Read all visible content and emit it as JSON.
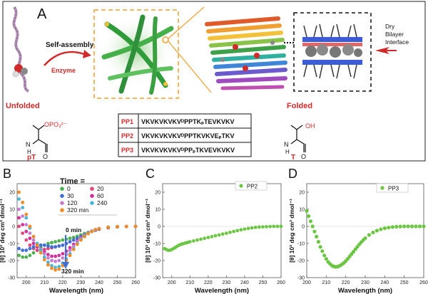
{
  "panel_a": {
    "letter": "A",
    "self_assembly": "Self-assembly",
    "enzyme": "Enzyme",
    "unfolded": "Unfolded",
    "folded": "Folded",
    "interface_line1": "Dry",
    "interface_line2": "Bilayer",
    "interface_line3": "Interface",
    "pT_label": "pT",
    "pT_group": "OPO₃²⁻",
    "T_label": "T",
    "T_group": "OH",
    "nh": "N",
    "h": "H",
    "o": "O",
    "peptides": [
      {
        "name": "PP1",
        "seq": "VKVKVKVKVᴰPPTKₚTEVKVKV"
      },
      {
        "name": "PP2",
        "seq": "VKVKVKVKVᴰPPTKVKVEₚTKV"
      },
      {
        "name": "PP3",
        "seq": "VKVKVKVKVᴰPPₚTKVEVKVKV"
      }
    ]
  },
  "panel_b": {
    "letter": "B",
    "legend_title": "Time =",
    "legend": [
      {
        "label": "0",
        "color": "#4caf50"
      },
      {
        "label": "20",
        "color": "#e0457b"
      },
      {
        "label": "30",
        "color": "#3f6fd8"
      },
      {
        "label": "60",
        "color": "#d0309a"
      },
      {
        "label": "120",
        "color": "#c77dcf"
      },
      {
        "label": "240",
        "color": "#49b6d8"
      },
      {
        "label": "320 min",
        "color": "#f08a24"
      }
    ],
    "ann_start": "0 min",
    "ann_end": "320 min"
  },
  "panel_c": {
    "letter": "C",
    "legend": "PP2"
  },
  "panel_d": {
    "letter": "D",
    "legend": "PP3"
  },
  "chart_data": [
    {
      "type": "scatter",
      "title": "B",
      "xlabel": "Wavelength (nm)",
      "ylabel": "[θ] 10³ deg cm² dmol⁻¹",
      "xlim": [
        195,
        260
      ],
      "ylim": [
        -30,
        25
      ],
      "xticks": [
        200,
        210,
        220,
        230,
        240,
        250,
        260
      ],
      "yticks": [
        -30,
        -20,
        -10,
        0,
        10,
        20
      ],
      "series": [
        {
          "name": "0",
          "color": "#4caf50",
          "x": [
            196,
            198,
            200,
            202,
            204,
            206,
            208,
            210,
            212,
            214,
            216,
            218,
            220,
            222,
            224,
            226,
            228,
            230,
            232,
            234,
            236,
            238,
            240,
            245,
            250,
            255,
            260
          ],
          "y": [
            -17,
            -18,
            -18,
            -17,
            -15.5,
            -14,
            -12.5,
            -11,
            -10,
            -9.5,
            -9,
            -8.5,
            -8,
            -7.5,
            -7,
            -6.5,
            -5.8,
            -5,
            -4.2,
            -3.5,
            -2.8,
            -2.2,
            -1.6,
            -0.8,
            -0.3,
            -0.1,
            0
          ]
        },
        {
          "name": "20",
          "color": "#e0457b",
          "x": [
            196,
            198,
            200,
            202,
            204,
            206,
            208,
            210,
            212,
            214,
            216,
            218,
            220,
            222,
            224,
            226,
            228,
            230,
            232,
            234,
            236,
            238,
            240,
            245,
            250,
            255,
            260
          ],
          "y": [
            0,
            -4,
            -8,
            -11,
            -13,
            -14,
            -14,
            -13.5,
            -13,
            -12.5,
            -12,
            -11.5,
            -11,
            -10,
            -9,
            -8,
            -7,
            -6,
            -5,
            -4,
            -3,
            -2.3,
            -1.7,
            -0.8,
            -0.3,
            -0.1,
            0
          ]
        },
        {
          "name": "30",
          "color": "#3f6fd8",
          "x": [
            196,
            198,
            200,
            202,
            204,
            206,
            208,
            210,
            212,
            214,
            216,
            218,
            220,
            222,
            224,
            226,
            228,
            230,
            232,
            234,
            236,
            238,
            240,
            245,
            250,
            255,
            260
          ],
          "y": [
            -13,
            -14,
            -14,
            -13,
            -12,
            -11,
            -11,
            -11,
            -11.5,
            -12,
            -12,
            -11.5,
            -11,
            -10,
            -9,
            -8,
            -7,
            -6,
            -5,
            -4,
            -3,
            -2.3,
            -1.7,
            -0.8,
            -0.3,
            -0.1,
            0
          ]
        },
        {
          "name": "60",
          "color": "#d0309a",
          "x": [
            196,
            198,
            200,
            202,
            204,
            206,
            208,
            210,
            212,
            214,
            216,
            218,
            220,
            222,
            224,
            226,
            228,
            230,
            232,
            234,
            236,
            238,
            240,
            245,
            250,
            255,
            260
          ],
          "y": [
            5,
            1,
            -3,
            -7,
            -10,
            -12,
            -13.5,
            -15,
            -16.5,
            -17.5,
            -17.5,
            -17,
            -16,
            -14.5,
            -12.5,
            -10.5,
            -8.5,
            -6.5,
            -5,
            -3.8,
            -2.8,
            -2,
            -1.4,
            -0.6,
            -0.2,
            -0.1,
            0
          ]
        },
        {
          "name": "120",
          "color": "#c77dcf",
          "x": [
            196,
            198,
            200,
            202,
            204,
            206,
            208,
            210,
            212,
            214,
            216,
            218,
            220,
            222,
            224,
            226,
            228,
            230,
            232,
            234,
            236,
            238,
            240,
            245,
            250,
            255,
            260
          ],
          "y": [
            10,
            6,
            1,
            -4,
            -8,
            -11,
            -13.5,
            -16,
            -18.5,
            -20,
            -20.5,
            -20,
            -18.5,
            -16.5,
            -14,
            -11.5,
            -9,
            -7,
            -5.2,
            -3.8,
            -2.7,
            -1.9,
            -1.3,
            -0.5,
            -0.2,
            -0.1,
            0
          ]
        },
        {
          "name": "240",
          "color": "#49b6d8",
          "x": [
            196,
            198,
            200,
            202,
            204,
            206,
            208,
            210,
            212,
            214,
            216,
            218,
            220,
            222,
            224,
            226,
            228,
            230,
            232,
            234,
            236,
            238,
            240,
            245,
            250,
            255,
            260
          ],
          "y": [
            16,
            11,
            5,
            -1,
            -6,
            -10,
            -14,
            -18,
            -21,
            -23,
            -24,
            -23.5,
            -21.5,
            -19,
            -16,
            -13,
            -10,
            -7.5,
            -5.5,
            -4,
            -2.8,
            -1.9,
            -1.3,
            -0.5,
            -0.2,
            -0.1,
            0
          ]
        },
        {
          "name": "320 min",
          "color": "#f08a24",
          "x": [
            196,
            198,
            200,
            202,
            204,
            206,
            208,
            210,
            212,
            214,
            216,
            218,
            220,
            222,
            224,
            226,
            228,
            230,
            232,
            234,
            236,
            238,
            240,
            245,
            250,
            255,
            260
          ],
          "y": [
            20,
            14,
            7,
            0,
            -6,
            -11,
            -15.5,
            -19.5,
            -22.5,
            -24.5,
            -25.5,
            -25,
            -23,
            -20,
            -17,
            -13.5,
            -10.5,
            -8,
            -6,
            -4.3,
            -3,
            -2,
            -1.4,
            -0.6,
            -0.2,
            -0.1,
            0
          ]
        }
      ]
    },
    {
      "type": "scatter",
      "title": "C",
      "xlabel": "Wavelength (nm)",
      "ylabel": "[θ] 10³ deg cm² dmol⁻¹",
      "xlim": [
        195,
        260
      ],
      "ylim": [
        -30,
        25
      ],
      "xticks": [
        200,
        210,
        220,
        230,
        240,
        250,
        260
      ],
      "yticks": [
        -30,
        -20,
        -10,
        0,
        10,
        20
      ],
      "series": [
        {
          "name": "PP2",
          "color": "#6cc644",
          "x": [
            196,
            197,
            198,
            199,
            200,
            201,
            202,
            203,
            204,
            205,
            206,
            207,
            208,
            209,
            210,
            212,
            214,
            216,
            218,
            220,
            222,
            224,
            226,
            228,
            230,
            232,
            234,
            236,
            238,
            240,
            242,
            244,
            246,
            248,
            250,
            252,
            254,
            256,
            258,
            260
          ],
          "y": [
            -13,
            -13.5,
            -14,
            -14,
            -13.5,
            -13,
            -12.3,
            -11.6,
            -11,
            -10.6,
            -10.2,
            -9.9,
            -9.6,
            -9.3,
            -9,
            -8.5,
            -8,
            -7.5,
            -7,
            -6.5,
            -6,
            -5.5,
            -5,
            -4.5,
            -4,
            -3.5,
            -3,
            -2.5,
            -2,
            -1.6,
            -1.2,
            -0.9,
            -0.6,
            -0.4,
            -0.3,
            -0.2,
            -0.1,
            0,
            0,
            0
          ]
        }
      ]
    },
    {
      "type": "scatter",
      "title": "D",
      "xlabel": "Wavelength (nm)",
      "ylabel": "[θ] 10³ deg cm² dmol⁻¹",
      "xlim": [
        200,
        260
      ],
      "ylim": [
        -30,
        25
      ],
      "xticks": [
        200,
        210,
        220,
        230,
        240,
        250,
        260
      ],
      "yticks": [
        -30,
        -20,
        -10,
        0,
        10,
        20
      ],
      "series": [
        {
          "name": "PP3",
          "color": "#6cc644",
          "x": [
            200,
            201,
            202,
            203,
            204,
            205,
            206,
            207,
            208,
            209,
            210,
            211,
            212,
            213,
            214,
            215,
            216,
            217,
            218,
            219,
            220,
            221,
            222,
            223,
            224,
            225,
            226,
            227,
            228,
            229,
            230,
            232,
            234,
            236,
            238,
            240,
            242,
            244,
            246,
            248,
            250,
            252,
            254,
            256,
            258,
            260
          ],
          "y": [
            9,
            6,
            3,
            0,
            -3,
            -6,
            -9,
            -12,
            -14.5,
            -17,
            -19,
            -20.8,
            -22,
            -23,
            -23.5,
            -23.7,
            -23.5,
            -23,
            -22.3,
            -21.4,
            -20.3,
            -19,
            -17.6,
            -16.2,
            -14.8,
            -13.3,
            -11.9,
            -10.5,
            -9.2,
            -8,
            -6.9,
            -5,
            -3.6,
            -2.5,
            -1.7,
            -1.1,
            -0.7,
            -0.4,
            -0.2,
            -0.1,
            0,
            0,
            0,
            0,
            0,
            0
          ]
        }
      ]
    }
  ]
}
